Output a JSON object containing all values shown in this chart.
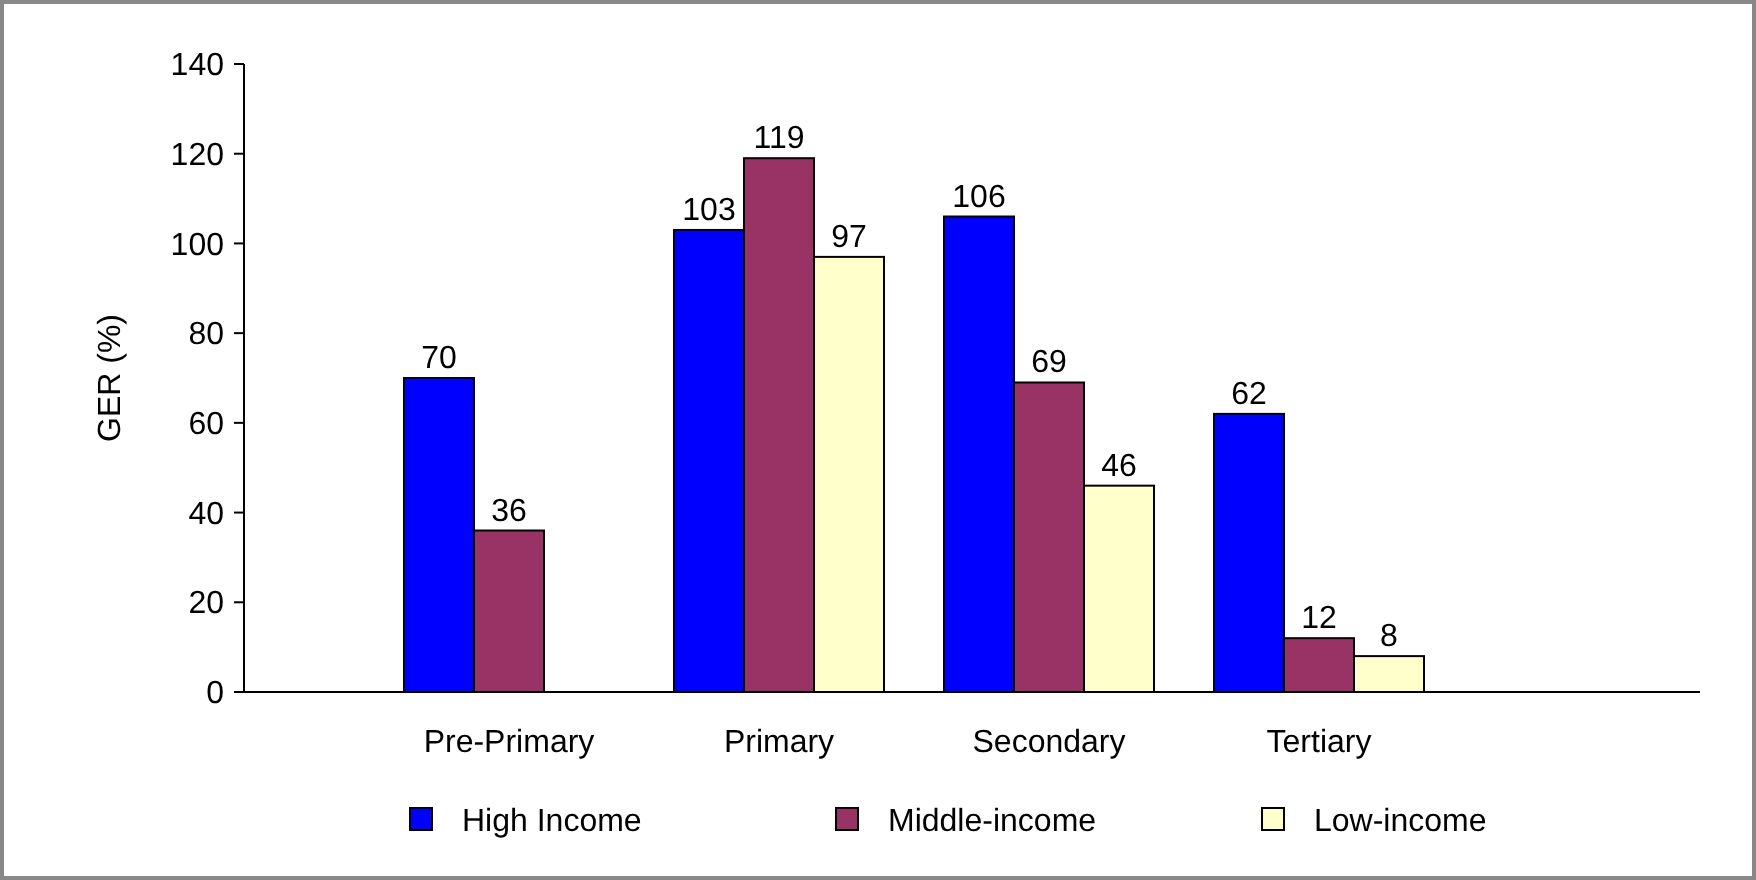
{
  "chart_data": {
    "type": "bar",
    "ylabel": "GER (%)",
    "categories": [
      "Pre-Primary",
      "Primary",
      "Secondary",
      "Tertiary"
    ],
    "series": [
      {
        "name": "High Income",
        "color": "#0000ff",
        "values": [
          70,
          103,
          106,
          62
        ]
      },
      {
        "name": "Middle-income",
        "color": "#993366",
        "values": [
          36,
          119,
          69,
          12
        ]
      },
      {
        "name": "Low-income",
        "color": "#ffffcc",
        "values": [
          null,
          97,
          46,
          8
        ]
      }
    ],
    "ylim": [
      0,
      140
    ],
    "yticks": [
      0,
      20,
      40,
      60,
      80,
      100,
      120,
      140
    ],
    "grid": false,
    "legend": "bottom",
    "data_labels": true
  }
}
